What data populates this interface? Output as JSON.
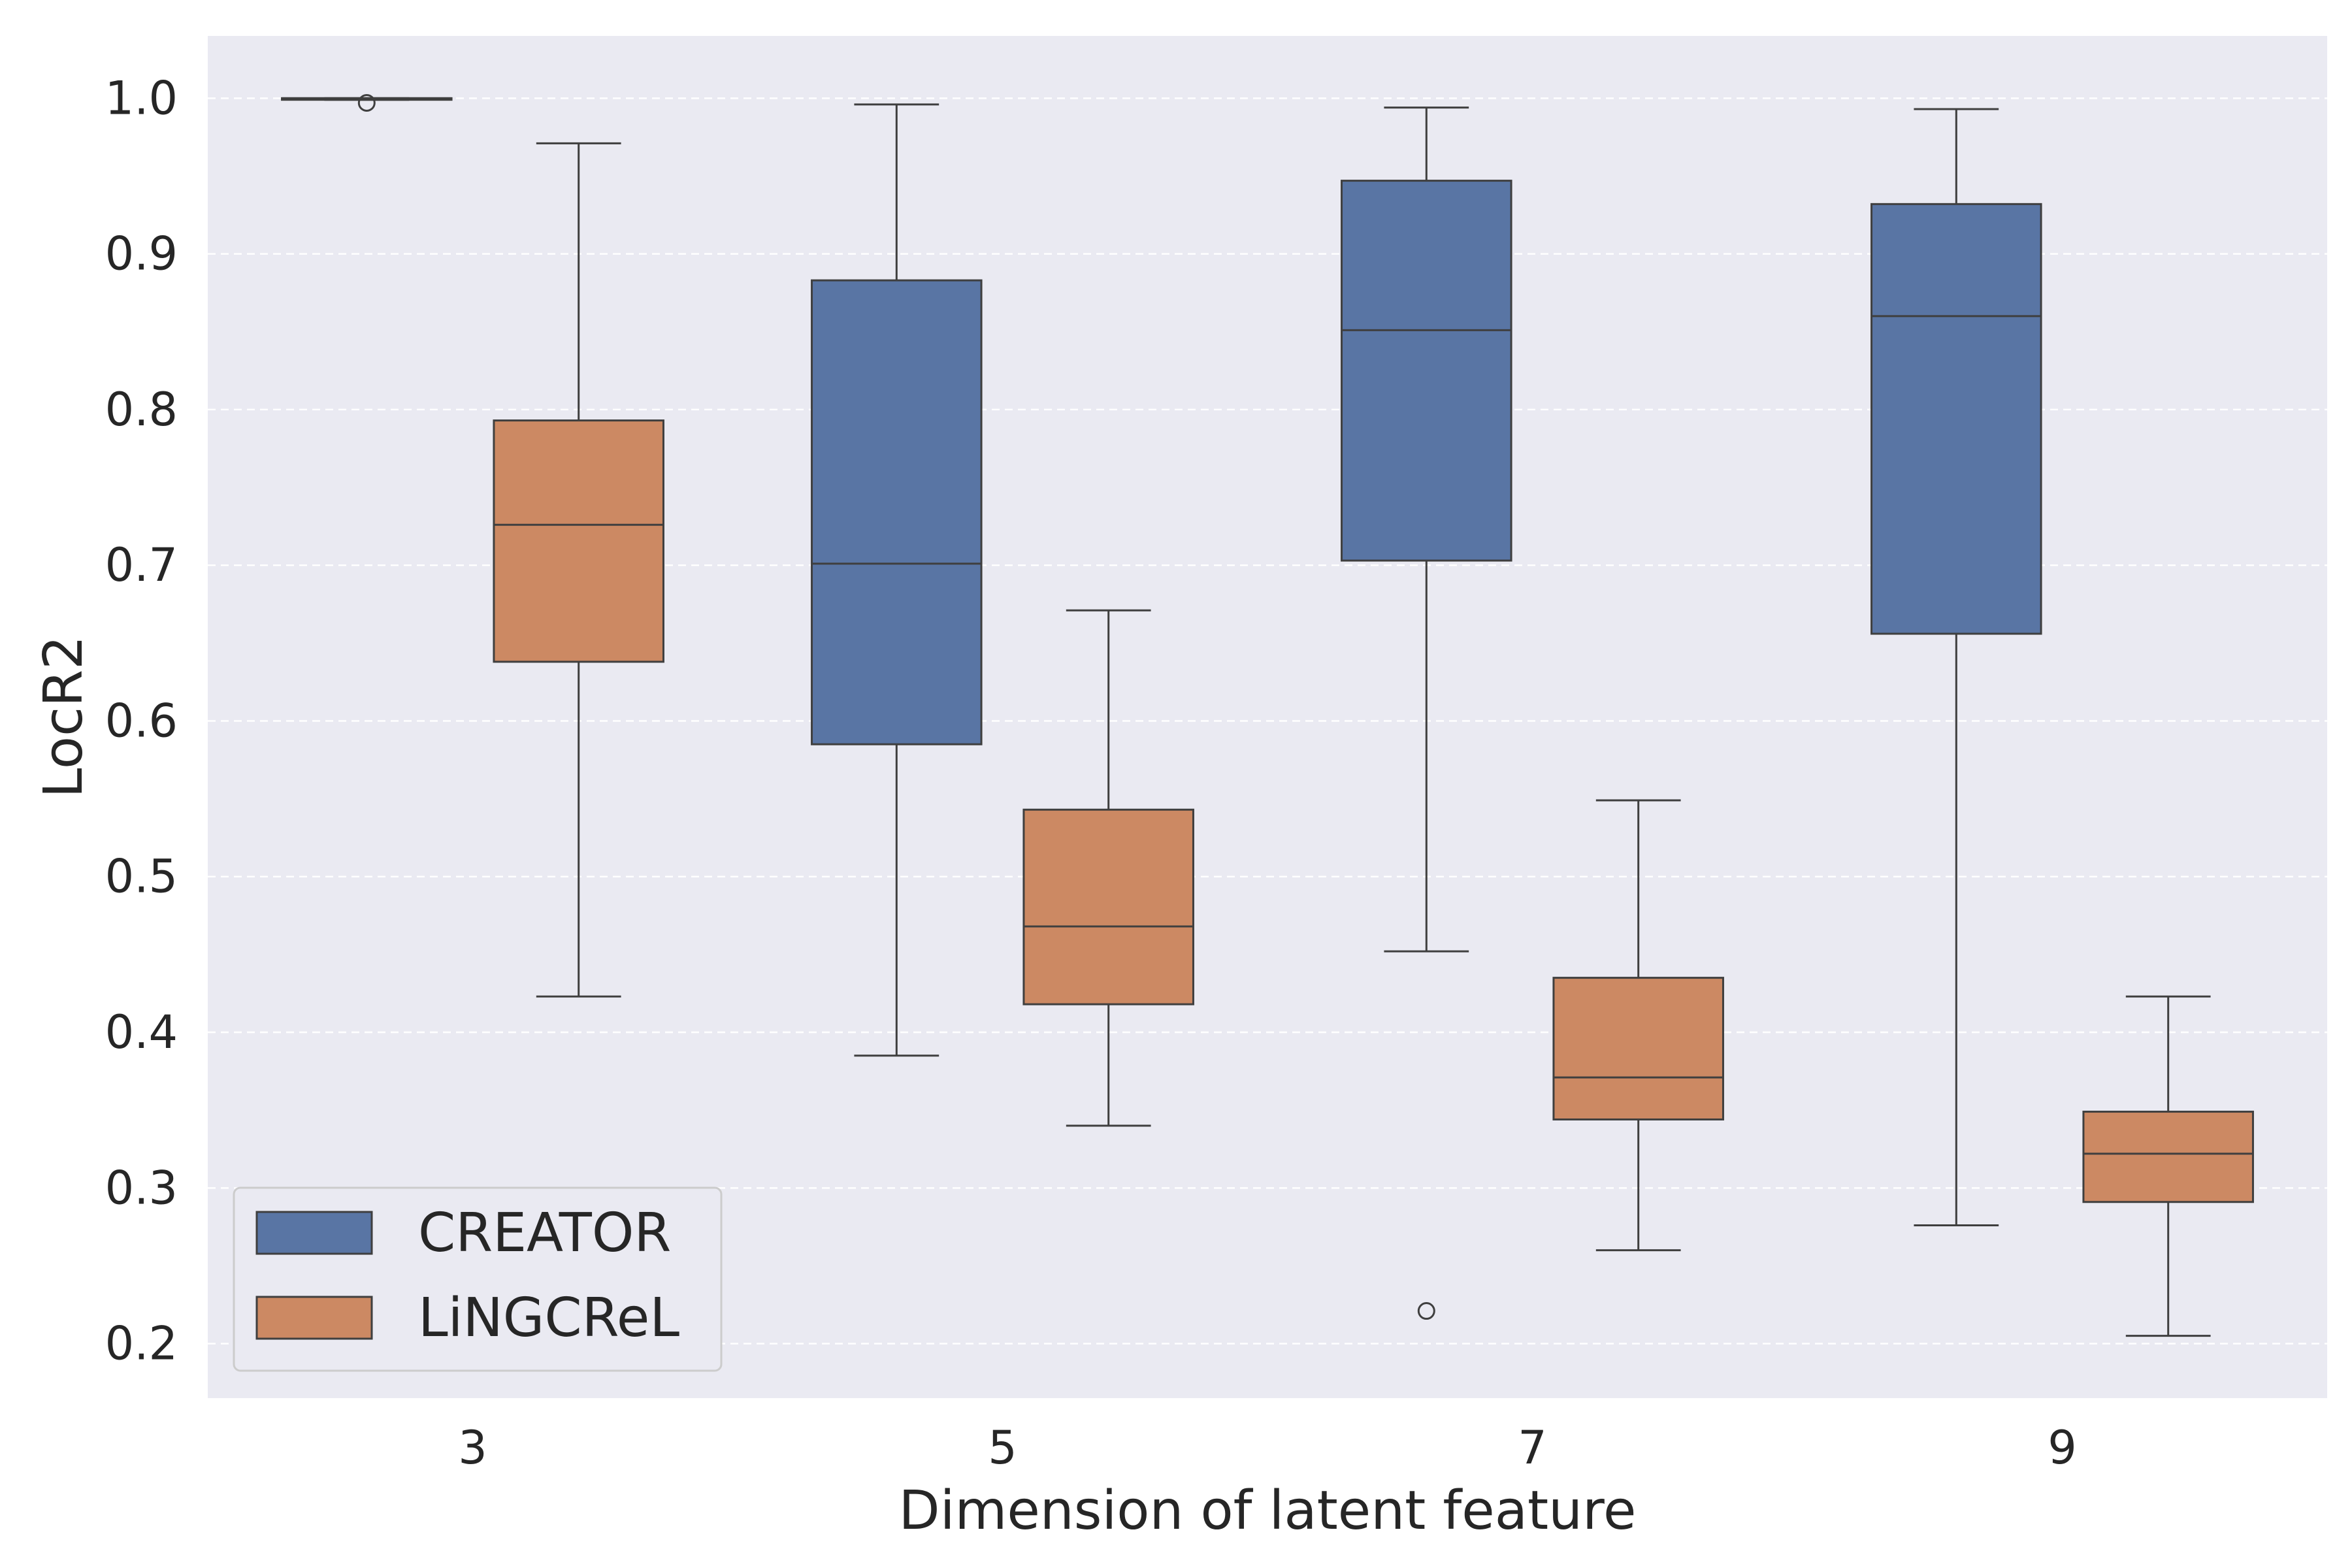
{
  "chart_data": {
    "type": "box",
    "title": "",
    "xlabel": "Dimension of latent feature",
    "ylabel": "LocR2",
    "categories": [
      "3",
      "5",
      "7",
      "9"
    ],
    "ylim": [
      0.165,
      1.04
    ],
    "yticks": [
      "0.2",
      "0.3",
      "0.4",
      "0.5",
      "0.6",
      "0.7",
      "0.8",
      "0.9",
      "1.0"
    ],
    "grid": true,
    "legend_position": "bottom-left",
    "series": [
      {
        "name": "CREATOR",
        "color": "#5975a4",
        "boxes": [
          {
            "whisker_low": 0.999,
            "q1": 0.999,
            "median": 1.0,
            "q3": 1.0,
            "whisker_high": 1.0,
            "outliers": [
              0.997
            ]
          },
          {
            "whisker_low": 0.385,
            "q1": 0.585,
            "median": 0.701,
            "q3": 0.883,
            "whisker_high": 0.996,
            "outliers": []
          },
          {
            "whisker_low": 0.452,
            "q1": 0.703,
            "median": 0.851,
            "q3": 0.947,
            "whisker_high": 0.994,
            "outliers": [
              0.221
            ]
          },
          {
            "whisker_low": 0.276,
            "q1": 0.656,
            "median": 0.86,
            "q3": 0.932,
            "whisker_high": 0.993,
            "outliers": []
          }
        ]
      },
      {
        "name": "LiNGCReL",
        "color": "#cc8963",
        "boxes": [
          {
            "whisker_low": 0.423,
            "q1": 0.638,
            "median": 0.726,
            "q3": 0.793,
            "whisker_high": 0.971,
            "outliers": []
          },
          {
            "whisker_low": 0.34,
            "q1": 0.418,
            "median": 0.468,
            "q3": 0.543,
            "whisker_high": 0.671,
            "outliers": []
          },
          {
            "whisker_low": 0.26,
            "q1": 0.344,
            "median": 0.371,
            "q3": 0.435,
            "whisker_high": 0.549,
            "outliers": []
          },
          {
            "whisker_low": 0.205,
            "q1": 0.291,
            "median": 0.322,
            "q3": 0.349,
            "whisker_high": 0.423,
            "outliers": []
          }
        ]
      }
    ]
  }
}
